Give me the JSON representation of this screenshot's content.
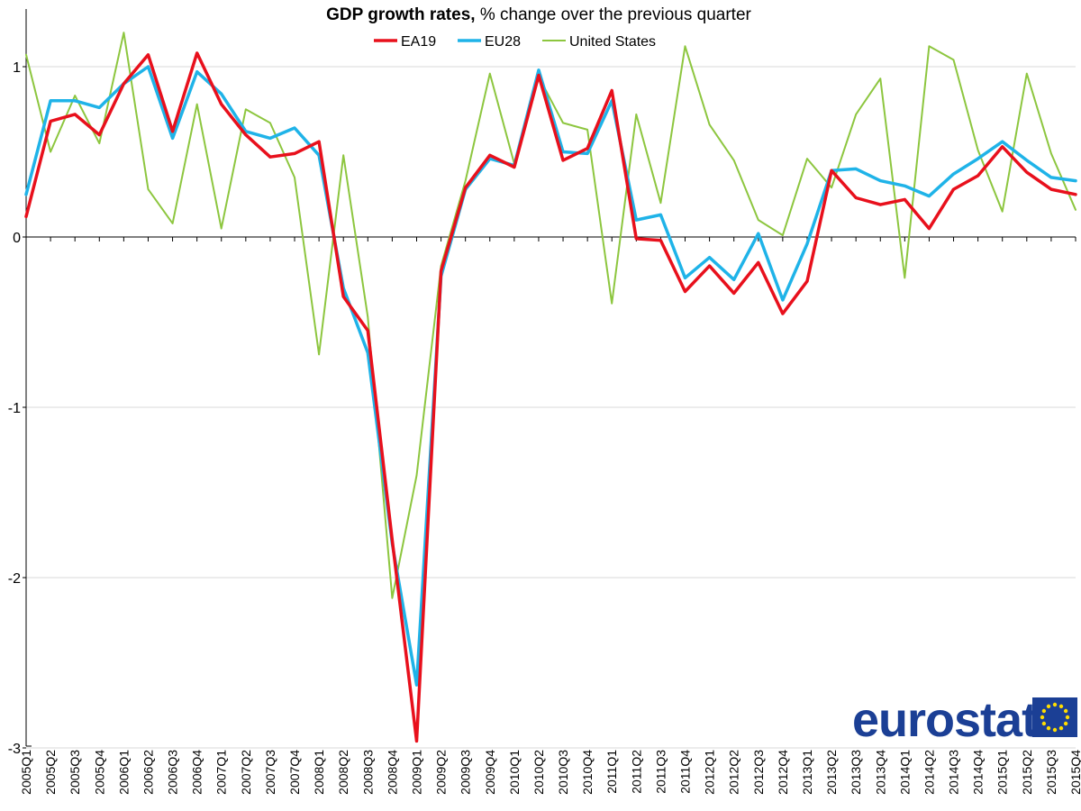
{
  "chart_data": {
    "type": "line",
    "title_bold": "GDP growth rates,",
    "title_rest": " % change over the previous quarter",
    "xlabel": "",
    "ylabel": "",
    "ylim": [
      -3,
      1.3
    ],
    "yticks": [
      1,
      0,
      -1,
      -2,
      -3
    ],
    "ytick_labels": [
      "1",
      "0",
      "-1",
      "-2",
      "-3"
    ],
    "legend_position": "top-center",
    "categories": [
      "2005Q1",
      "2005Q2",
      "2005Q3",
      "2005Q4",
      "2006Q1",
      "2006Q2",
      "2006Q3",
      "2006Q4",
      "2007Q1",
      "2007Q2",
      "2007Q3",
      "2007Q4",
      "2008Q1",
      "2008Q2",
      "2008Q3",
      "2008Q4",
      "2009Q1",
      "2009Q2",
      "2009Q3",
      "2009Q4",
      "2010Q1",
      "2010Q2",
      "2010Q3",
      "2010Q4",
      "2011Q1",
      "2011Q2",
      "2011Q3",
      "2011Q4",
      "2012Q1",
      "2012Q2",
      "2012Q3",
      "2012Q4",
      "2013Q1",
      "2013Q2",
      "2013Q3",
      "2013Q4",
      "2014Q1",
      "2014Q2",
      "2014Q3",
      "2014Q4",
      "2015Q1",
      "2015Q2",
      "2015Q3",
      "2015Q4"
    ],
    "series": [
      {
        "name": "EA19",
        "color": "#e8101c",
        "width": 3.5,
        "values": [
          0.12,
          0.68,
          0.72,
          0.6,
          0.9,
          1.07,
          0.62,
          1.08,
          0.78,
          0.6,
          0.47,
          0.49,
          0.56,
          -0.35,
          -0.55,
          -1.78,
          -2.96,
          -0.2,
          0.29,
          0.48,
          0.41,
          0.95,
          0.45,
          0.52,
          0.86,
          -0.01,
          -0.02,
          -0.32,
          -0.17,
          -0.33,
          -0.15,
          -0.45,
          -0.26,
          0.39,
          0.23,
          0.19,
          0.22,
          0.05,
          0.28,
          0.36,
          0.53,
          0.38,
          0.28,
          0.25
        ]
      },
      {
        "name": "EU28",
        "color": "#1fb3e8",
        "width": 3.5,
        "values": [
          0.25,
          0.8,
          0.8,
          0.76,
          0.9,
          1.0,
          0.58,
          0.97,
          0.84,
          0.62,
          0.58,
          0.64,
          0.48,
          -0.3,
          -0.68,
          -1.8,
          -2.63,
          -0.23,
          0.28,
          0.46,
          0.42,
          0.98,
          0.5,
          0.49,
          0.8,
          0.1,
          0.13,
          -0.24,
          -0.12,
          -0.25,
          0.02,
          -0.37,
          -0.04,
          0.39,
          0.4,
          0.33,
          0.3,
          0.24,
          0.37,
          0.46,
          0.56,
          0.45,
          0.35,
          0.33
        ]
      },
      {
        "name": "United States",
        "color": "#8dc63f",
        "width": 2,
        "values": [
          1.07,
          0.5,
          0.83,
          0.55,
          1.2,
          0.28,
          0.08,
          0.78,
          0.05,
          0.75,
          0.67,
          0.35,
          -0.69,
          0.48,
          -0.47,
          -2.12,
          -1.4,
          -0.17,
          0.33,
          0.96,
          0.43,
          0.94,
          0.67,
          0.63,
          -0.39,
          0.72,
          0.2,
          1.12,
          0.66,
          0.45,
          0.1,
          0.01,
          0.46,
          0.29,
          0.72,
          0.93,
          -0.24,
          1.12,
          1.04,
          0.51,
          0.15,
          0.96,
          0.49,
          0.16
        ]
      }
    ]
  },
  "logo": {
    "text": "eurostat",
    "flag_color": "#1b3f95",
    "star_color": "#ffdd00"
  }
}
